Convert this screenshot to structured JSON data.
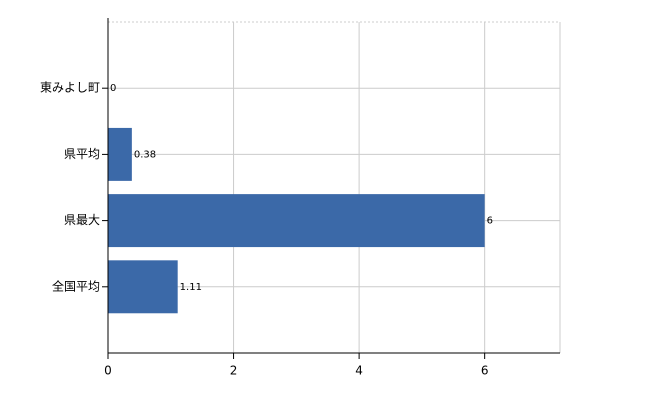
{
  "chart_data": {
    "type": "bar",
    "orientation": "horizontal",
    "categories": [
      "東みよし町",
      "県平均",
      "県最大",
      "全国平均"
    ],
    "values": [
      0,
      0.38,
      6,
      1.11
    ],
    "color": "#3b69a8",
    "xlim": [
      0,
      7.2
    ],
    "xticks": [
      0,
      2,
      4,
      6
    ],
    "grid": true
  }
}
